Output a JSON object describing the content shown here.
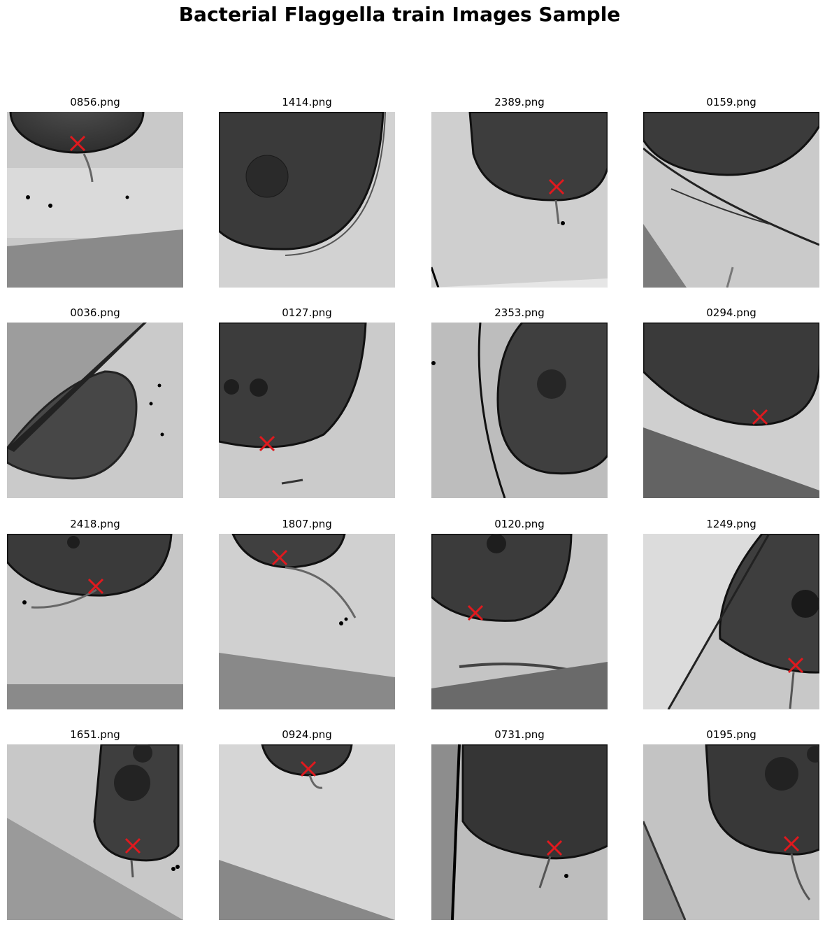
{
  "figure": {
    "title": "Bacterial Flaggella train Images Sample"
  },
  "marker_color": "#e0191e",
  "images": [
    {
      "name": "0856.png",
      "marked": true
    },
    {
      "name": "1414.png",
      "marked": false
    },
    {
      "name": "2389.png",
      "marked": true
    },
    {
      "name": "0159.png",
      "marked": false
    },
    {
      "name": "0036.png",
      "marked": false
    },
    {
      "name": "0127.png",
      "marked": true
    },
    {
      "name": "2353.png",
      "marked": false
    },
    {
      "name": "0294.png",
      "marked": true
    },
    {
      "name": "2418.png",
      "marked": true
    },
    {
      "name": "1807.png",
      "marked": true
    },
    {
      "name": "0120.png",
      "marked": true
    },
    {
      "name": "1249.png",
      "marked": true
    },
    {
      "name": "1651.png",
      "marked": true
    },
    {
      "name": "0924.png",
      "marked": true
    },
    {
      "name": "0731.png",
      "marked": true
    },
    {
      "name": "0195.png",
      "marked": true
    }
  ]
}
